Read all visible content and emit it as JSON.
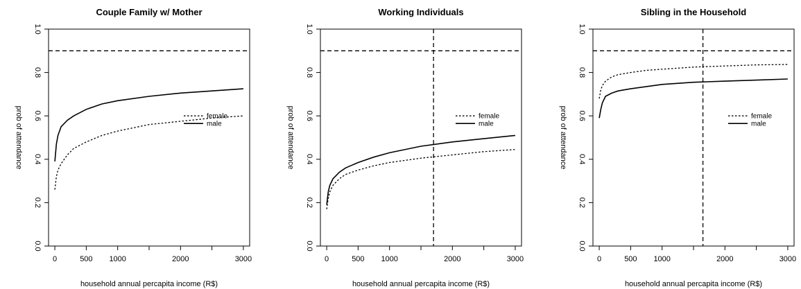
{
  "chart_data": [
    {
      "type": "line",
      "title": "Couple Family w/ Mother",
      "xlabel": "household  annual percapita income (R$)",
      "ylabel": "prob of attendance",
      "xlim": [
        -100,
        3100
      ],
      "ylim": [
        0,
        1.0
      ],
      "xticks": [
        0,
        500,
        1000,
        1500,
        2000,
        2500,
        3000
      ],
      "xtick_labels": [
        "0",
        "500",
        "1000",
        "",
        "2000",
        "",
        "3000"
      ],
      "yticks": [
        0,
        0.2,
        0.4,
        0.6,
        0.8,
        1.0
      ],
      "ytick_labels": [
        "0.0",
        "0.2",
        "0.4",
        "0.6",
        "0.8",
        "1.0"
      ],
      "hline": 0.9,
      "vline": null,
      "legend": {
        "position": "center-right",
        "entries": [
          "female",
          "male"
        ]
      },
      "series": [
        {
          "name": "female",
          "style": "dotted",
          "x": [
            0,
            25,
            50,
            100,
            200,
            300,
            500,
            750,
            1000,
            1500,
            2000,
            2500,
            3000
          ],
          "y": [
            0.26,
            0.32,
            0.35,
            0.38,
            0.42,
            0.45,
            0.48,
            0.51,
            0.53,
            0.56,
            0.575,
            0.59,
            0.6
          ]
        },
        {
          "name": "male",
          "style": "solid",
          "x": [
            0,
            25,
            50,
            100,
            200,
            300,
            500,
            750,
            1000,
            1500,
            2000,
            2500,
            3000
          ],
          "y": [
            0.39,
            0.47,
            0.51,
            0.55,
            0.58,
            0.6,
            0.63,
            0.655,
            0.67,
            0.69,
            0.705,
            0.715,
            0.725
          ]
        }
      ]
    },
    {
      "type": "line",
      "title": "Working Individuals",
      "xlabel": "household  annual percapita income (R$)",
      "ylabel": "prob of attendance",
      "xlim": [
        -100,
        3100
      ],
      "ylim": [
        0,
        1.0
      ],
      "xticks": [
        0,
        500,
        1000,
        1500,
        2000,
        2500,
        3000
      ],
      "xtick_labels": [
        "0",
        "500",
        "1000",
        "",
        "2000",
        "",
        "3000"
      ],
      "yticks": [
        0,
        0.2,
        0.4,
        0.6,
        0.8,
        1.0
      ],
      "ytick_labels": [
        "0.0",
        "0.2",
        "0.4",
        "0.6",
        "0.8",
        "1.0"
      ],
      "hline": 0.9,
      "vline": 1700,
      "legend": {
        "position": "center-right",
        "entries": [
          "female",
          "male"
        ]
      },
      "series": [
        {
          "name": "female",
          "style": "dotted",
          "x": [
            0,
            25,
            50,
            100,
            200,
            300,
            500,
            750,
            1000,
            1500,
            2000,
            2500,
            3000
          ],
          "y": [
            0.17,
            0.22,
            0.25,
            0.28,
            0.31,
            0.33,
            0.35,
            0.37,
            0.385,
            0.405,
            0.42,
            0.435,
            0.445
          ]
        },
        {
          "name": "male",
          "style": "solid",
          "x": [
            0,
            25,
            50,
            100,
            200,
            300,
            500,
            750,
            1000,
            1500,
            2000,
            2500,
            3000
          ],
          "y": [
            0.19,
            0.25,
            0.28,
            0.31,
            0.34,
            0.36,
            0.385,
            0.41,
            0.43,
            0.46,
            0.48,
            0.495,
            0.51
          ]
        }
      ]
    },
    {
      "type": "line",
      "title": "Sibling in the Household",
      "xlabel": "household  annual percapita income (R$)",
      "ylabel": "prob of attendance",
      "xlim": [
        -100,
        3100
      ],
      "ylim": [
        0,
        1.0
      ],
      "xticks": [
        0,
        500,
        1000,
        1500,
        2000,
        2500,
        3000
      ],
      "xtick_labels": [
        "0",
        "500",
        "1000",
        "",
        "2000",
        "",
        "3000"
      ],
      "yticks": [
        0,
        0.2,
        0.4,
        0.6,
        0.8,
        1.0
      ],
      "ytick_labels": [
        "0.0",
        "0.2",
        "0.4",
        "0.6",
        "0.8",
        "1.0"
      ],
      "hline": 0.9,
      "vline": 1650,
      "legend": {
        "position": "center-right",
        "entries": [
          "female",
          "male"
        ]
      },
      "series": [
        {
          "name": "female",
          "style": "dotted",
          "x": [
            0,
            25,
            50,
            100,
            200,
            300,
            500,
            750,
            1000,
            1500,
            2000,
            2500,
            3000
          ],
          "y": [
            0.68,
            0.72,
            0.74,
            0.76,
            0.78,
            0.79,
            0.8,
            0.81,
            0.815,
            0.825,
            0.83,
            0.835,
            0.837
          ]
        },
        {
          "name": "male",
          "style": "solid",
          "x": [
            0,
            25,
            50,
            100,
            200,
            300,
            500,
            750,
            1000,
            1500,
            2000,
            2500,
            3000
          ],
          "y": [
            0.59,
            0.63,
            0.66,
            0.69,
            0.705,
            0.715,
            0.725,
            0.735,
            0.745,
            0.755,
            0.76,
            0.765,
            0.77
          ]
        }
      ]
    }
  ]
}
